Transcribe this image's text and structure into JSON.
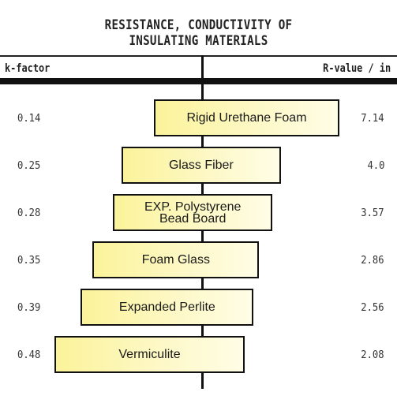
{
  "chart_data": {
    "type": "bar",
    "title_lines": [
      "RESISTANCE, CONDUCTIVITY OF",
      "INSULATING MATERIALS"
    ],
    "left_header": "k-factor",
    "right_header": "R-value / in",
    "categories": [
      "Rigid Urethane Foam",
      "Glass Fiber",
      "EXP. Polystyrene\nBead Board",
      "Foam Glass",
      "Expanded Perlite",
      "Vermiculite"
    ],
    "k_factor_labels": [
      "0.14",
      "0.25",
      "0.28",
      "0.35",
      "0.39",
      "0.48"
    ],
    "k_factor": [
      0.14,
      0.25,
      0.28,
      0.35,
      0.39,
      0.48
    ],
    "r_value_labels": [
      "7.14",
      "4.0",
      "3.57",
      "2.86",
      "2.56",
      "2.08"
    ],
    "r_value": [
      7.14,
      4.0,
      3.57,
      2.86,
      2.56,
      2.08
    ],
    "colors": {
      "bar_fill": "#fbf39a",
      "bar_border": "#111111"
    }
  }
}
